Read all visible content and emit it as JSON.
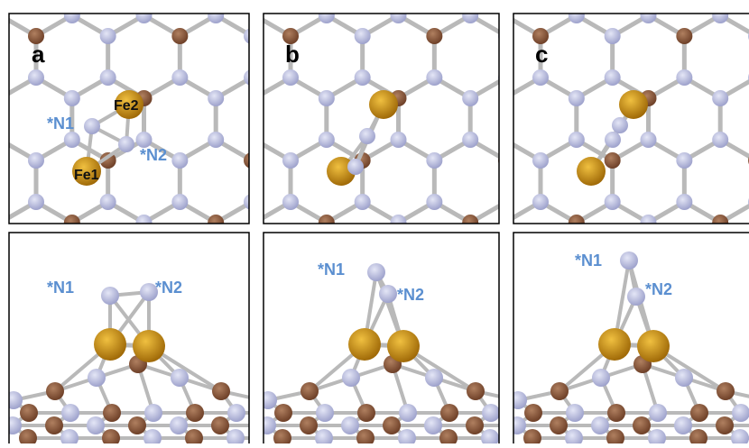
{
  "panels": [
    {
      "label": "a",
      "top_labels": [
        "*N1",
        "*N2",
        "Fe1",
        "Fe2"
      ],
      "side_labels": [
        "*N1",
        "*N2"
      ]
    },
    {
      "label": "b",
      "side_labels": [
        "*N1",
        "*N2"
      ]
    },
    {
      "label": "c",
      "side_labels": [
        "*N1",
        "*N2"
      ]
    }
  ]
}
